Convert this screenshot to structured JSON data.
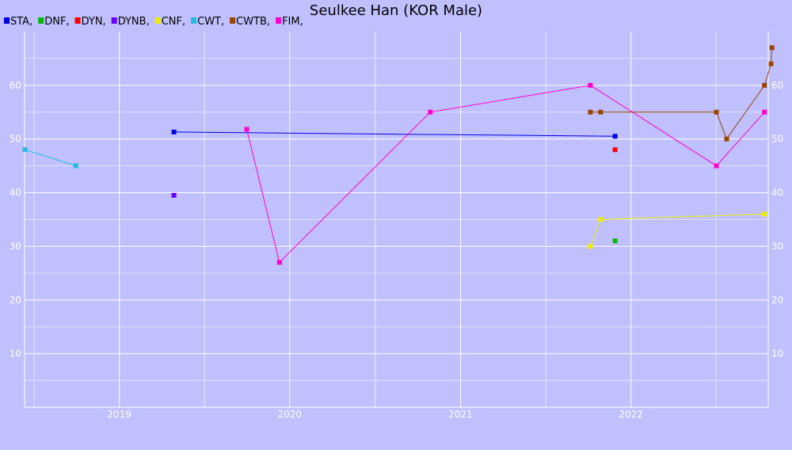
{
  "chart_data": {
    "type": "line",
    "title": "Seulkee Han (KOR Male)",
    "xlabel": "",
    "ylabel": "",
    "xlim": [
      "2018-06-12",
      "2022-10-22"
    ],
    "ylim": [
      0,
      70
    ],
    "x_ticks": [
      {
        "label": "2019",
        "date": "2019-01-01"
      },
      {
        "label": "2020",
        "date": "2020-01-01"
      },
      {
        "label": "2021",
        "date": "2021-01-01"
      },
      {
        "label": "2022",
        "date": "2022-01-01"
      }
    ],
    "y_ticks": [
      10,
      20,
      30,
      40,
      50,
      60
    ],
    "grid": true,
    "legend_position": "top-left",
    "series": [
      {
        "name": "STA,",
        "color": "#0000dd",
        "points": [
          [
            "2019-04-28",
            51.3
          ],
          [
            "2021-11-28",
            50.5
          ]
        ]
      },
      {
        "name": "DNF,",
        "color": "#00bb00",
        "points": [
          [
            "2021-11-28",
            31
          ]
        ]
      },
      {
        "name": "DYN,",
        "color": "#ff0000",
        "points": [
          [
            "2021-11-28",
            48
          ]
        ]
      },
      {
        "name": "DYNB,",
        "color": "#6600ff",
        "points": [
          [
            "2019-04-28",
            39.5
          ]
        ]
      },
      {
        "name": "CNF,",
        "color": "#eeee00",
        "points": [
          [
            "2021-10-06",
            30
          ],
          [
            "2021-10-28",
            35
          ],
          [
            "2022-10-14",
            36
          ]
        ]
      },
      {
        "name": "CWT,",
        "color": "#22bbdd",
        "points": [
          [
            "2018-06-13",
            48
          ],
          [
            "2018-09-30",
            45
          ]
        ]
      },
      {
        "name": "CWTB,",
        "color": "#994400",
        "points": [
          [
            "2021-10-06",
            55
          ],
          [
            "2021-10-28",
            55
          ],
          [
            "2022-07-03",
            55
          ],
          [
            "2022-07-25",
            50
          ],
          [
            "2022-10-14",
            60
          ],
          [
            "2022-10-28",
            64
          ],
          [
            "2022-10-30",
            67
          ]
        ]
      },
      {
        "name": "FIM,",
        "color": "#ff00cc",
        "points": [
          [
            "2019-10-01",
            51.8
          ],
          [
            "2019-12-10",
            27
          ],
          [
            "2020-10-28",
            55
          ],
          [
            "2021-10-06",
            60
          ],
          [
            "2022-07-03",
            45
          ],
          [
            "2022-10-14",
            55
          ]
        ]
      }
    ]
  }
}
